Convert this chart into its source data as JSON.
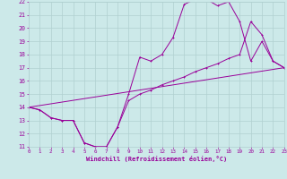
{
  "xlabel": "Windchill (Refroidissement éolien,°C)",
  "xlim": [
    0,
    23
  ],
  "ylim": [
    11,
    22
  ],
  "xticks": [
    0,
    1,
    2,
    3,
    4,
    5,
    6,
    7,
    8,
    9,
    10,
    11,
    12,
    13,
    14,
    15,
    16,
    17,
    18,
    19,
    20,
    21,
    22,
    23
  ],
  "yticks": [
    11,
    12,
    13,
    14,
    15,
    16,
    17,
    18,
    19,
    20,
    21,
    22
  ],
  "bg_color": "#cce9e9",
  "grid_color": "#b0d0d0",
  "line_color": "#990099",
  "line1_x": [
    0,
    1,
    2,
    3,
    4,
    5,
    6,
    7,
    8,
    9,
    10,
    11,
    12,
    13,
    14,
    15,
    16,
    17,
    18,
    19,
    20,
    21,
    22,
    23
  ],
  "line1_y": [
    14,
    13.8,
    13.2,
    13.0,
    13.0,
    11.3,
    11.0,
    11.0,
    12.5,
    15.0,
    17.8,
    17.5,
    18.0,
    19.3,
    21.8,
    22.2,
    22.2,
    21.7,
    22.0,
    20.5,
    17.5,
    19.0,
    17.5,
    17.0
  ],
  "line2_x": [
    0,
    1,
    2,
    3,
    4,
    5,
    6,
    7,
    8,
    9,
    10,
    11,
    12,
    13,
    14,
    15,
    16,
    17,
    18,
    19,
    20,
    21,
    22,
    23
  ],
  "line2_y": [
    14,
    13.8,
    13.2,
    13.0,
    13.0,
    11.3,
    11.0,
    11.0,
    12.5,
    14.5,
    15.0,
    15.3,
    15.7,
    16.0,
    16.3,
    16.7,
    17.0,
    17.3,
    17.7,
    18.0,
    20.5,
    19.5,
    17.5,
    17.0
  ],
  "line3_x": [
    0,
    23
  ],
  "line3_y": [
    14,
    17.0
  ]
}
